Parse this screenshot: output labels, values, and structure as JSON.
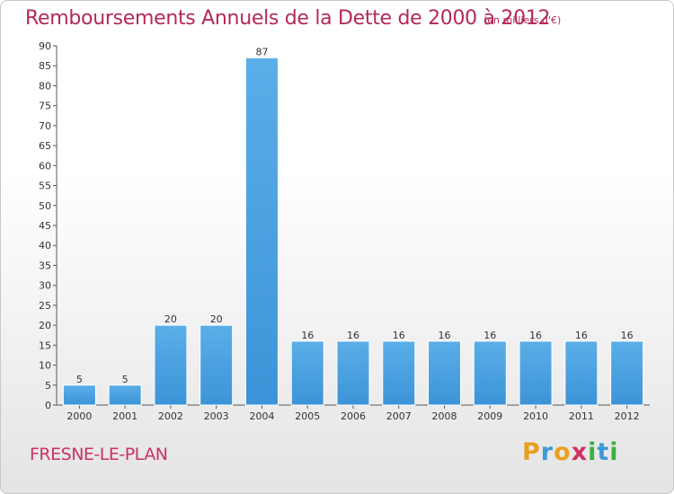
{
  "header": {
    "title": "Remboursements Annuels de la Dette de 2000 à 2012",
    "subtitle": "(en milliers d'€)"
  },
  "footer": {
    "commune": "FRESNE-LE-PLAN",
    "logo": {
      "letters": [
        "P",
        "r",
        "o",
        "x",
        "i",
        "t",
        "i"
      ],
      "colors": [
        "#e8a020",
        "#3c9ad6",
        "#e8a020",
        "#d03060",
        "#3cb040",
        "#3c9ad6",
        "#3cb040"
      ]
    }
  },
  "chart_data": {
    "type": "bar",
    "title": "Remboursements Annuels de la Dette de 2000 à 2012",
    "subtitle": "(en milliers d'€)",
    "categories": [
      "2000",
      "2001",
      "2002",
      "2003",
      "2004",
      "2005",
      "2006",
      "2007",
      "2008",
      "2009",
      "2010",
      "2011",
      "2012"
    ],
    "values": [
      5,
      5,
      20,
      20,
      87,
      16,
      16,
      16,
      16,
      16,
      16,
      16,
      16
    ],
    "value_labels": [
      "5",
      "5",
      "20",
      "20",
      "87",
      "16",
      "16",
      "16",
      "16",
      "16",
      "16",
      "16",
      "16"
    ],
    "ylim": [
      0,
      90
    ],
    "yticks": [
      0,
      5,
      10,
      15,
      20,
      25,
      30,
      35,
      40,
      45,
      50,
      55,
      60,
      65,
      70,
      75,
      80,
      85,
      90
    ],
    "ytick_labels": [
      "0",
      "5",
      "10",
      "15",
      "20",
      "25",
      "30",
      "35",
      "40",
      "45",
      "50",
      "55",
      "60",
      "65",
      "70",
      "75",
      "80",
      "85",
      "90"
    ],
    "grid": false,
    "bar_color": "#3c94d8",
    "bar_color_light": "#5aaee8"
  }
}
